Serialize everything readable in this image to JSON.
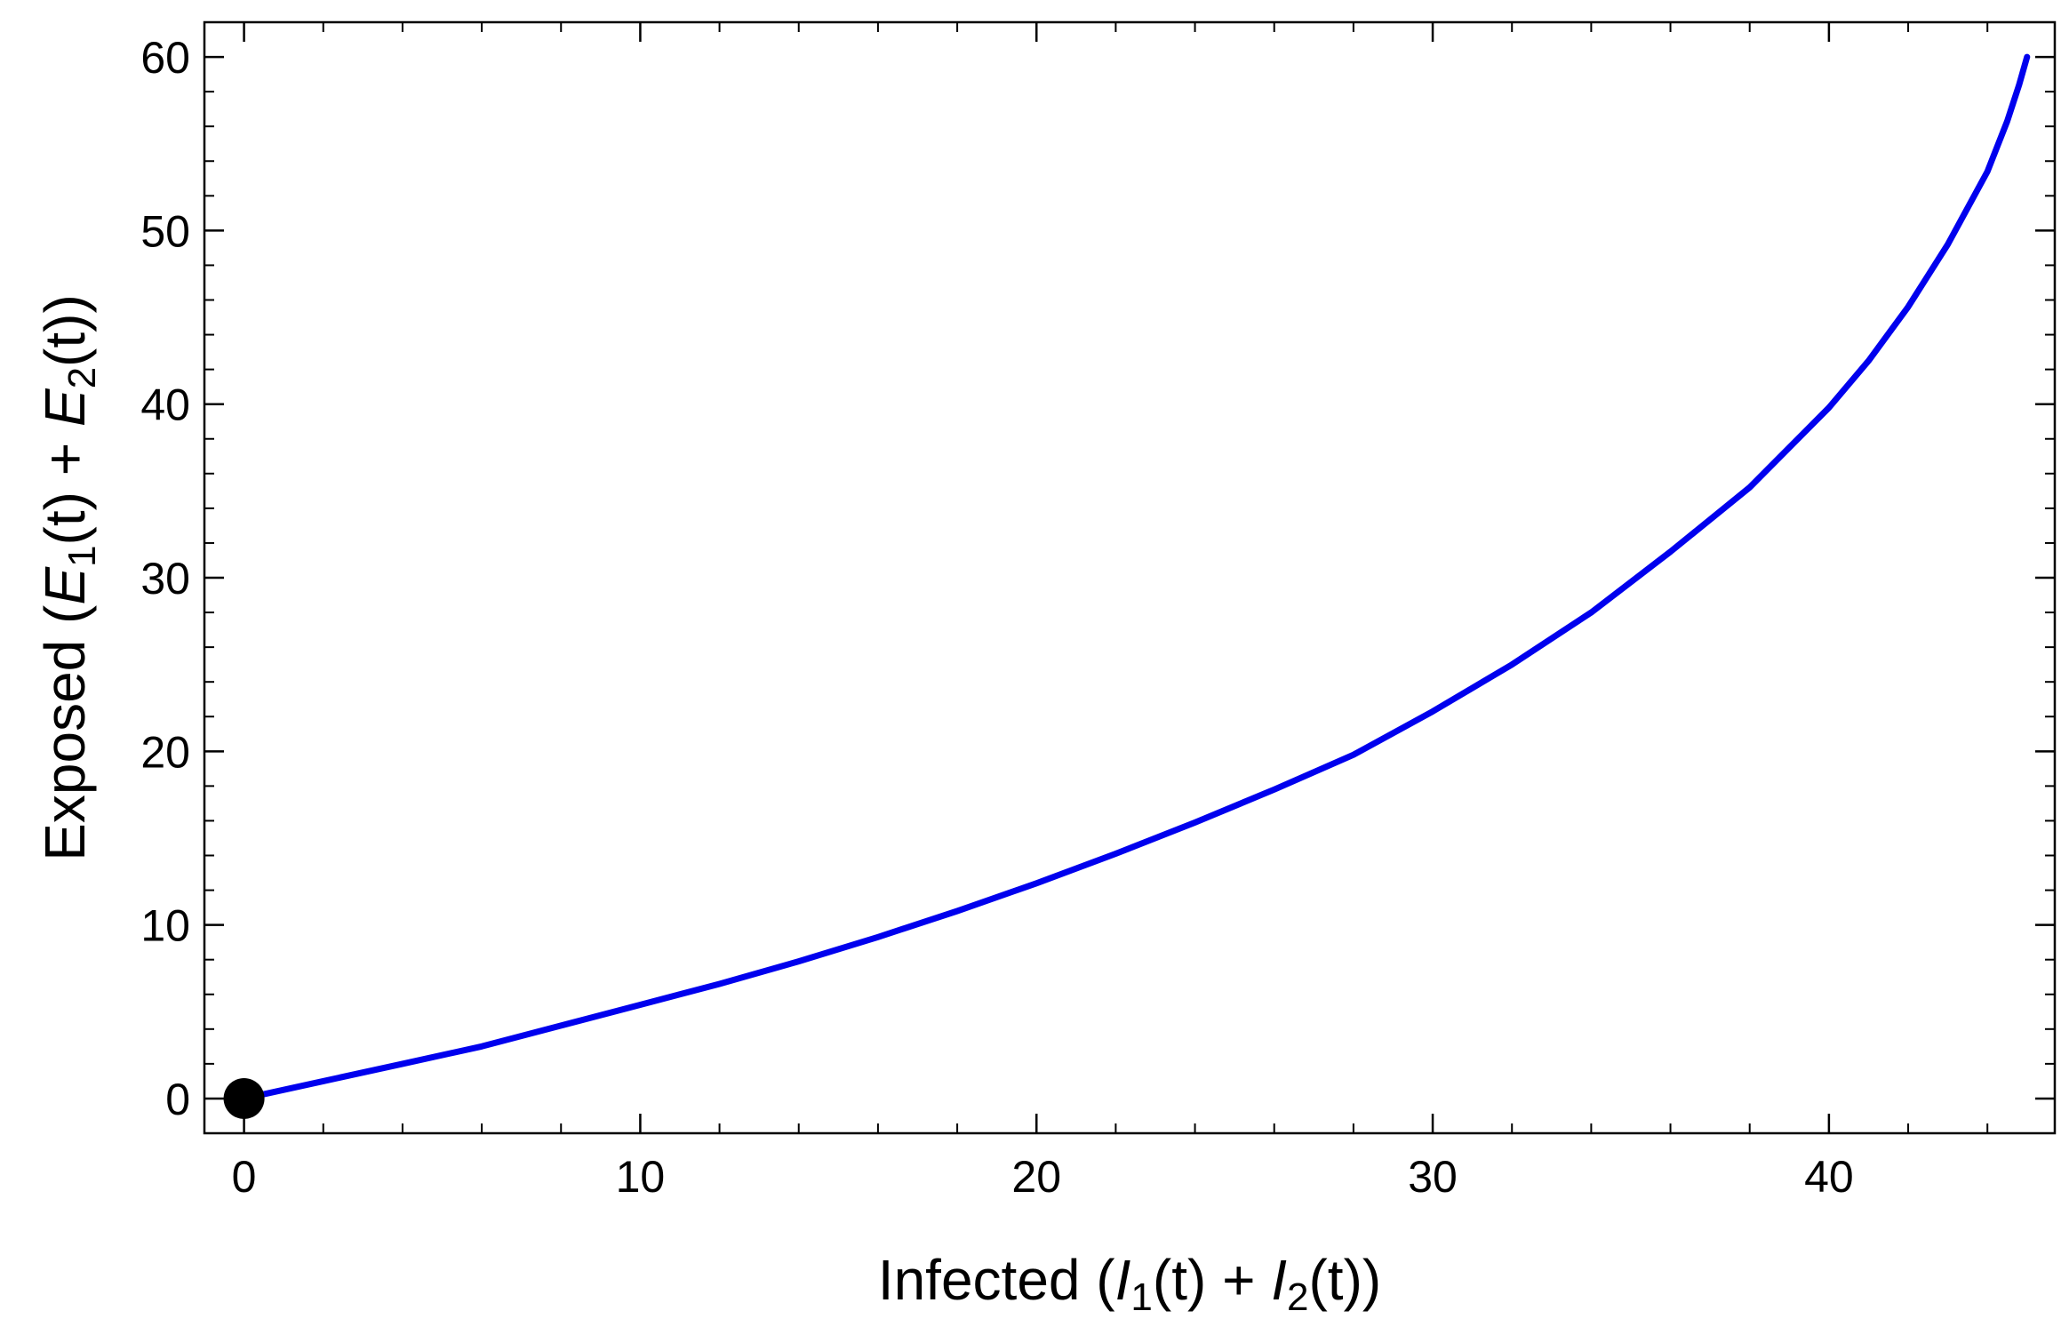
{
  "chart_data": {
    "type": "line",
    "title": "",
    "xlabel": {
      "prefix": "Infected (",
      "v1": "I",
      "s1": "1",
      "mid": "(t) + ",
      "v2": "I",
      "s2": "2",
      "suffix": "(t))"
    },
    "ylabel": {
      "prefix": "Exposed (",
      "v1": "E",
      "s1": "1",
      "mid": "(t) + ",
      "v2": "E",
      "s2": "2",
      "suffix": "(t))"
    },
    "xlim": [
      -1,
      45.7
    ],
    "ylim": [
      -2,
      62
    ],
    "xticks": [
      0,
      10,
      20,
      30,
      40
    ],
    "yticks": [
      0,
      10,
      20,
      30,
      40,
      50,
      60
    ],
    "grid": false,
    "series": [
      {
        "color": "#0000ee",
        "x": [
          0,
          2,
          4,
          6,
          8,
          10,
          12,
          14,
          16,
          18,
          20,
          22,
          24,
          26,
          28,
          30,
          32,
          34,
          36,
          38,
          40,
          41,
          42,
          43,
          44,
          44.5,
          44.8,
          45.0
        ],
        "y": [
          0,
          1.0,
          2.0,
          3.0,
          4.2,
          5.4,
          6.6,
          7.9,
          9.3,
          10.8,
          12.4,
          14.1,
          15.9,
          17.8,
          19.8,
          22.3,
          25.0,
          28.0,
          31.5,
          35.2,
          39.8,
          42.5,
          45.6,
          49.2,
          53.4,
          56.3,
          58.4,
          60.0
        ]
      }
    ],
    "marker": {
      "x": 0,
      "y": 0,
      "color": "#000000"
    }
  }
}
